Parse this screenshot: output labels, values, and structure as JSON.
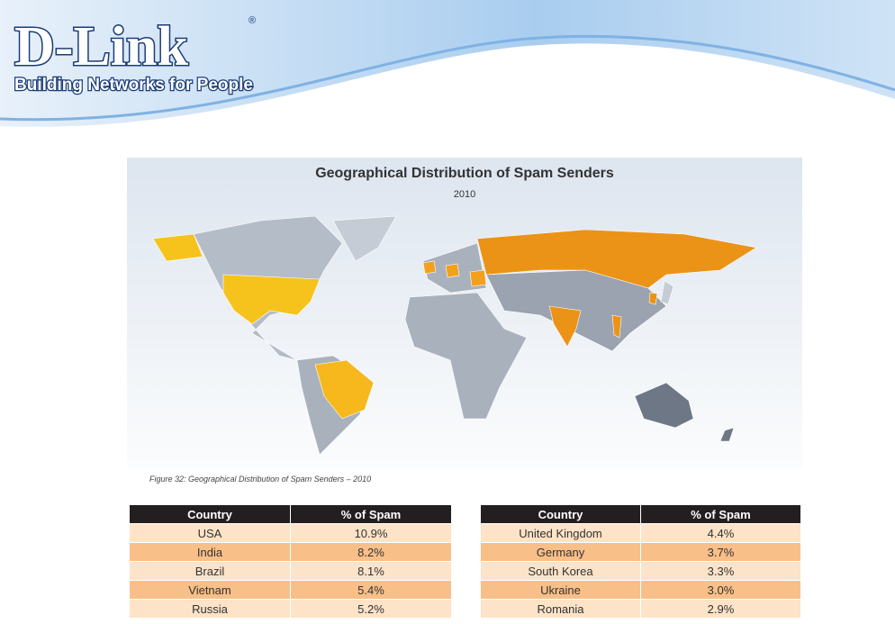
{
  "header": {
    "brand": "D-Link",
    "registered": "®",
    "tagline": "Building Networks for People"
  },
  "figure": {
    "title": "Geographical Distribution of Spam Senders",
    "subtitle": "2010",
    "caption": "Figure 32: Geographical Distribution of Spam Senders – 2010"
  },
  "tables": [
    {
      "columns": [
        "Country",
        "% of Spam"
      ],
      "rows": [
        [
          "USA",
          "10.9%"
        ],
        [
          "India",
          "8.2%"
        ],
        [
          "Brazil",
          "8.1%"
        ],
        [
          "Vietnam",
          "5.4%"
        ],
        [
          "Russia",
          "5.2%"
        ]
      ]
    },
    {
      "columns": [
        "Country",
        "% of Spam"
      ],
      "rows": [
        [
          "United Kingdom",
          "4.4%"
        ],
        [
          "Germany",
          "3.7%"
        ],
        [
          "South Korea",
          "3.3%"
        ],
        [
          "Ukraine",
          "3.0%"
        ],
        [
          "Romania",
          "2.9%"
        ]
      ]
    }
  ]
}
